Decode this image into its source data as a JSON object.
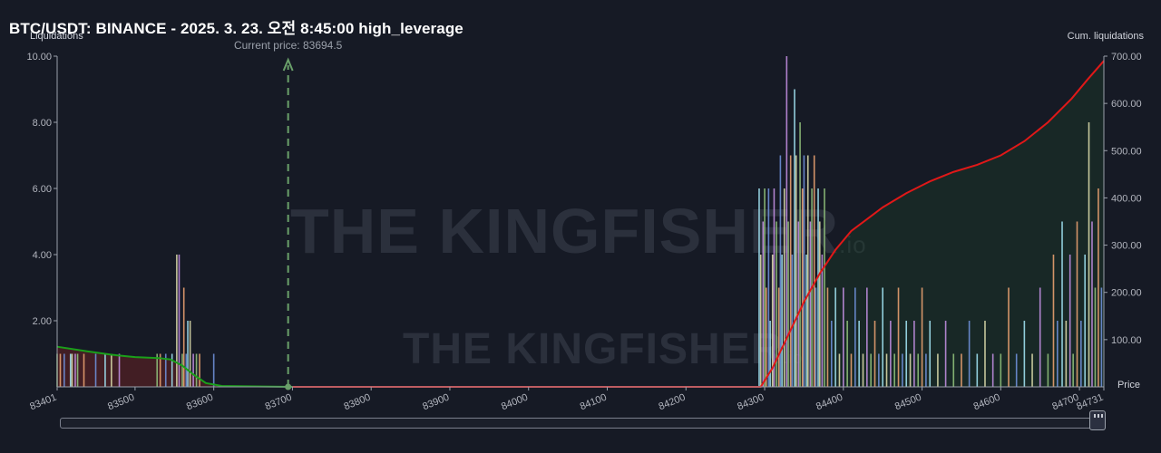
{
  "header": {
    "title": "BTC/USDT: BINANCE - 2025. 3. 23. 오전 8:45:00 high_leverage"
  },
  "axes": {
    "left_title": "Liquidations",
    "right_title": "Cum. liquidations",
    "x_title": "Price"
  },
  "annotation": {
    "current_price": "Current price: 83694.5"
  },
  "watermark": {
    "brand_large": "THE KINGFISHER",
    "brand_small": "THE KINGFISHER",
    "suffix": ".io"
  },
  "colors": {
    "background": "#161a25",
    "cum_long": "#1aa01a",
    "cum_short": "#e01818",
    "price_marker": "#6aa06a",
    "bars": [
      "#8fbf7a",
      "#e8a070",
      "#6e8fd8",
      "#9fe0f0",
      "#d8d8a8",
      "#c08de0"
    ]
  },
  "chart_data": {
    "type": "bar",
    "x_ticks": [
      "83401",
      "83500",
      "83600",
      "83700",
      "83800",
      "83900",
      "84000",
      "84100",
      "84200",
      "84300",
      "84400",
      "84500",
      "84600",
      "84700",
      "84731"
    ],
    "xlim": [
      83401,
      84731
    ],
    "y_left_ticks": [
      "2.00",
      "4.00",
      "6.00",
      "8.00",
      "10.00"
    ],
    "ylim_left": [
      0,
      10
    ],
    "y_right_ticks": [
      "100.00",
      "200.00",
      "300.00",
      "400.00",
      "500.00",
      "600.00",
      "700.00"
    ],
    "ylim_right": [
      0,
      700
    ],
    "current_price": 83694.5,
    "series": [
      {
        "kind": "cumulative",
        "side": "long",
        "points": [
          [
            83401,
            85
          ],
          [
            83440,
            75
          ],
          [
            83470,
            68
          ],
          [
            83500,
            63
          ],
          [
            83530,
            61
          ],
          [
            83545,
            58
          ],
          [
            83560,
            45
          ],
          [
            83575,
            25
          ],
          [
            83590,
            8
          ],
          [
            83610,
            2
          ],
          [
            83700,
            0
          ]
        ]
      },
      {
        "kind": "cumulative",
        "side": "short",
        "points": [
          [
            83700,
            0
          ],
          [
            84295,
            0
          ],
          [
            84310,
            40
          ],
          [
            84330,
            110
          ],
          [
            84350,
            180
          ],
          [
            84370,
            240
          ],
          [
            84390,
            290
          ],
          [
            84410,
            330
          ],
          [
            84430,
            355
          ],
          [
            84450,
            380
          ],
          [
            84480,
            410
          ],
          [
            84510,
            435
          ],
          [
            84540,
            455
          ],
          [
            84570,
            470
          ],
          [
            84600,
            490
          ],
          [
            84630,
            520
          ],
          [
            84660,
            560
          ],
          [
            84690,
            610
          ],
          [
            84710,
            650
          ],
          [
            84731,
            690
          ]
        ]
      }
    ],
    "bars": [
      {
        "x": 83401,
        "v": 1
      },
      {
        "x": 83405,
        "v": 1
      },
      {
        "x": 83410,
        "v": 1
      },
      {
        "x": 83418,
        "v": 1
      },
      {
        "x": 83420,
        "v": 1
      },
      {
        "x": 83424,
        "v": 1
      },
      {
        "x": 83427,
        "v": 1
      },
      {
        "x": 83435,
        "v": 1
      },
      {
        "x": 83450,
        "v": 1
      },
      {
        "x": 83462,
        "v": 1
      },
      {
        "x": 83470,
        "v": 1
      },
      {
        "x": 83480,
        "v": 1
      },
      {
        "x": 83528,
        "v": 1
      },
      {
        "x": 83532,
        "v": 1
      },
      {
        "x": 83539,
        "v": 1
      },
      {
        "x": 83547,
        "v": 1
      },
      {
        "x": 83553,
        "v": 4
      },
      {
        "x": 83556,
        "v": 4
      },
      {
        "x": 83560,
        "v": 1
      },
      {
        "x": 83562,
        "v": 3
      },
      {
        "x": 83565,
        "v": 1
      },
      {
        "x": 83567,
        "v": 2
      },
      {
        "x": 83570,
        "v": 2
      },
      {
        "x": 83574,
        "v": 1
      },
      {
        "x": 83578,
        "v": 1
      },
      {
        "x": 83582,
        "v": 1
      },
      {
        "x": 83600,
        "v": 1
      },
      {
        "x": 84293,
        "v": 6
      },
      {
        "x": 84295,
        "v": 4
      },
      {
        "x": 84298,
        "v": 5
      },
      {
        "x": 84300,
        "v": 6
      },
      {
        "x": 84302,
        "v": 3
      },
      {
        "x": 84305,
        "v": 6
      },
      {
        "x": 84307,
        "v": 2
      },
      {
        "x": 84310,
        "v": 4
      },
      {
        "x": 84312,
        "v": 6
      },
      {
        "x": 84315,
        "v": 5
      },
      {
        "x": 84318,
        "v": 3
      },
      {
        "x": 84320,
        "v": 7
      },
      {
        "x": 84322,
        "v": 4
      },
      {
        "x": 84325,
        "v": 6
      },
      {
        "x": 84328,
        "v": 10
      },
      {
        "x": 84330,
        "v": 5
      },
      {
        "x": 84333,
        "v": 7
      },
      {
        "x": 84335,
        "v": 4
      },
      {
        "x": 84338,
        "v": 9
      },
      {
        "x": 84340,
        "v": 7
      },
      {
        "x": 84343,
        "v": 5
      },
      {
        "x": 84345,
        "v": 8
      },
      {
        "x": 84348,
        "v": 6
      },
      {
        "x": 84350,
        "v": 7
      },
      {
        "x": 84353,
        "v": 4
      },
      {
        "x": 84355,
        "v": 7
      },
      {
        "x": 84358,
        "v": 5
      },
      {
        "x": 84360,
        "v": 6
      },
      {
        "x": 84363,
        "v": 7
      },
      {
        "x": 84365,
        "v": 3
      },
      {
        "x": 84368,
        "v": 6
      },
      {
        "x": 84370,
        "v": 5
      },
      {
        "x": 84373,
        "v": 4
      },
      {
        "x": 84376,
        "v": 6
      },
      {
        "x": 84380,
        "v": 3
      },
      {
        "x": 84385,
        "v": 2
      },
      {
        "x": 84390,
        "v": 3
      },
      {
        "x": 84395,
        "v": 1
      },
      {
        "x": 84400,
        "v": 3
      },
      {
        "x": 84405,
        "v": 2
      },
      {
        "x": 84410,
        "v": 1
      },
      {
        "x": 84415,
        "v": 3
      },
      {
        "x": 84420,
        "v": 2
      },
      {
        "x": 84425,
        "v": 1
      },
      {
        "x": 84430,
        "v": 3
      },
      {
        "x": 84435,
        "v": 1
      },
      {
        "x": 84440,
        "v": 2
      },
      {
        "x": 84445,
        "v": 1
      },
      {
        "x": 84450,
        "v": 3
      },
      {
        "x": 84455,
        "v": 1
      },
      {
        "x": 84460,
        "v": 2
      },
      {
        "x": 84465,
        "v": 1
      },
      {
        "x": 84470,
        "v": 3
      },
      {
        "x": 84475,
        "v": 1
      },
      {
        "x": 84480,
        "v": 2
      },
      {
        "x": 84485,
        "v": 1
      },
      {
        "x": 84490,
        "v": 2
      },
      {
        "x": 84495,
        "v": 1
      },
      {
        "x": 84500,
        "v": 3
      },
      {
        "x": 84505,
        "v": 1
      },
      {
        "x": 84510,
        "v": 2
      },
      {
        "x": 84520,
        "v": 1
      },
      {
        "x": 84530,
        "v": 2
      },
      {
        "x": 84540,
        "v": 1
      },
      {
        "x": 84550,
        "v": 1
      },
      {
        "x": 84560,
        "v": 2
      },
      {
        "x": 84570,
        "v": 1
      },
      {
        "x": 84580,
        "v": 2
      },
      {
        "x": 84590,
        "v": 1
      },
      {
        "x": 84600,
        "v": 1
      },
      {
        "x": 84610,
        "v": 3
      },
      {
        "x": 84620,
        "v": 1
      },
      {
        "x": 84630,
        "v": 2
      },
      {
        "x": 84640,
        "v": 1
      },
      {
        "x": 84650,
        "v": 3
      },
      {
        "x": 84660,
        "v": 1
      },
      {
        "x": 84667,
        "v": 4
      },
      {
        "x": 84672,
        "v": 2
      },
      {
        "x": 84678,
        "v": 5
      },
      {
        "x": 84683,
        "v": 2
      },
      {
        "x": 84688,
        "v": 4
      },
      {
        "x": 84692,
        "v": 1
      },
      {
        "x": 84697,
        "v": 5
      },
      {
        "x": 84702,
        "v": 2
      },
      {
        "x": 84707,
        "v": 4
      },
      {
        "x": 84712,
        "v": 8
      },
      {
        "x": 84716,
        "v": 5
      },
      {
        "x": 84720,
        "v": 3
      },
      {
        "x": 84724,
        "v": 6
      },
      {
        "x": 84728,
        "v": 3
      }
    ]
  }
}
